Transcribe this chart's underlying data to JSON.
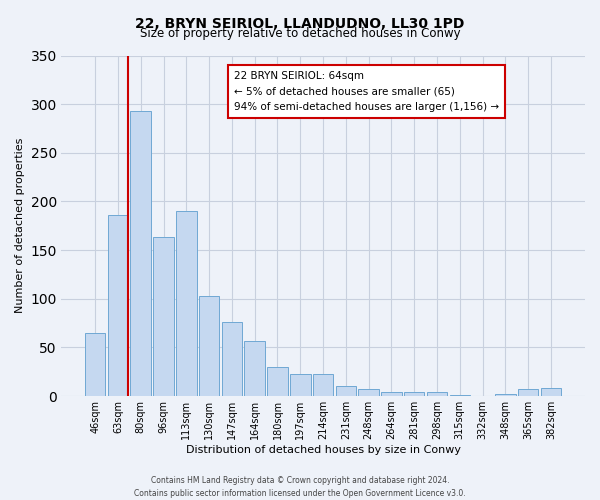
{
  "title": "22, BRYN SEIRIOL, LLANDUDNO, LL30 1PD",
  "subtitle": "Size of property relative to detached houses in Conwy",
  "xlabel": "Distribution of detached houses by size in Conwy",
  "ylabel": "Number of detached properties",
  "categories": [
    "46sqm",
    "63sqm",
    "80sqm",
    "96sqm",
    "113sqm",
    "130sqm",
    "147sqm",
    "164sqm",
    "180sqm",
    "197sqm",
    "214sqm",
    "231sqm",
    "248sqm",
    "264sqm",
    "281sqm",
    "298sqm",
    "315sqm",
    "332sqm",
    "348sqm",
    "365sqm",
    "382sqm"
  ],
  "values": [
    65,
    186,
    293,
    163,
    190,
    103,
    76,
    57,
    30,
    23,
    23,
    10,
    7,
    4,
    4,
    4,
    1,
    0,
    2,
    7,
    8
  ],
  "bar_color": "#c5d8f0",
  "bar_edge_color": "#6fa8d4",
  "vline_color": "#cc0000",
  "ylim": [
    0,
    350
  ],
  "yticks": [
    0,
    50,
    100,
    150,
    200,
    250,
    300,
    350
  ],
  "annotation_title": "22 BRYN SEIRIOL: 64sqm",
  "annotation_line1": "← 5% of detached houses are smaller (65)",
  "annotation_line2": "94% of semi-detached houses are larger (1,156) →",
  "annotation_box_color": "#ffffff",
  "annotation_box_edge": "#cc0000",
  "footer1": "Contains HM Land Registry data © Crown copyright and database right 2024.",
  "footer2": "Contains public sector information licensed under the Open Government Licence v3.0.",
  "bg_color": "#eef2f9",
  "plot_bg_color": "#eef2f9",
  "grid_color": "#c8d0de"
}
